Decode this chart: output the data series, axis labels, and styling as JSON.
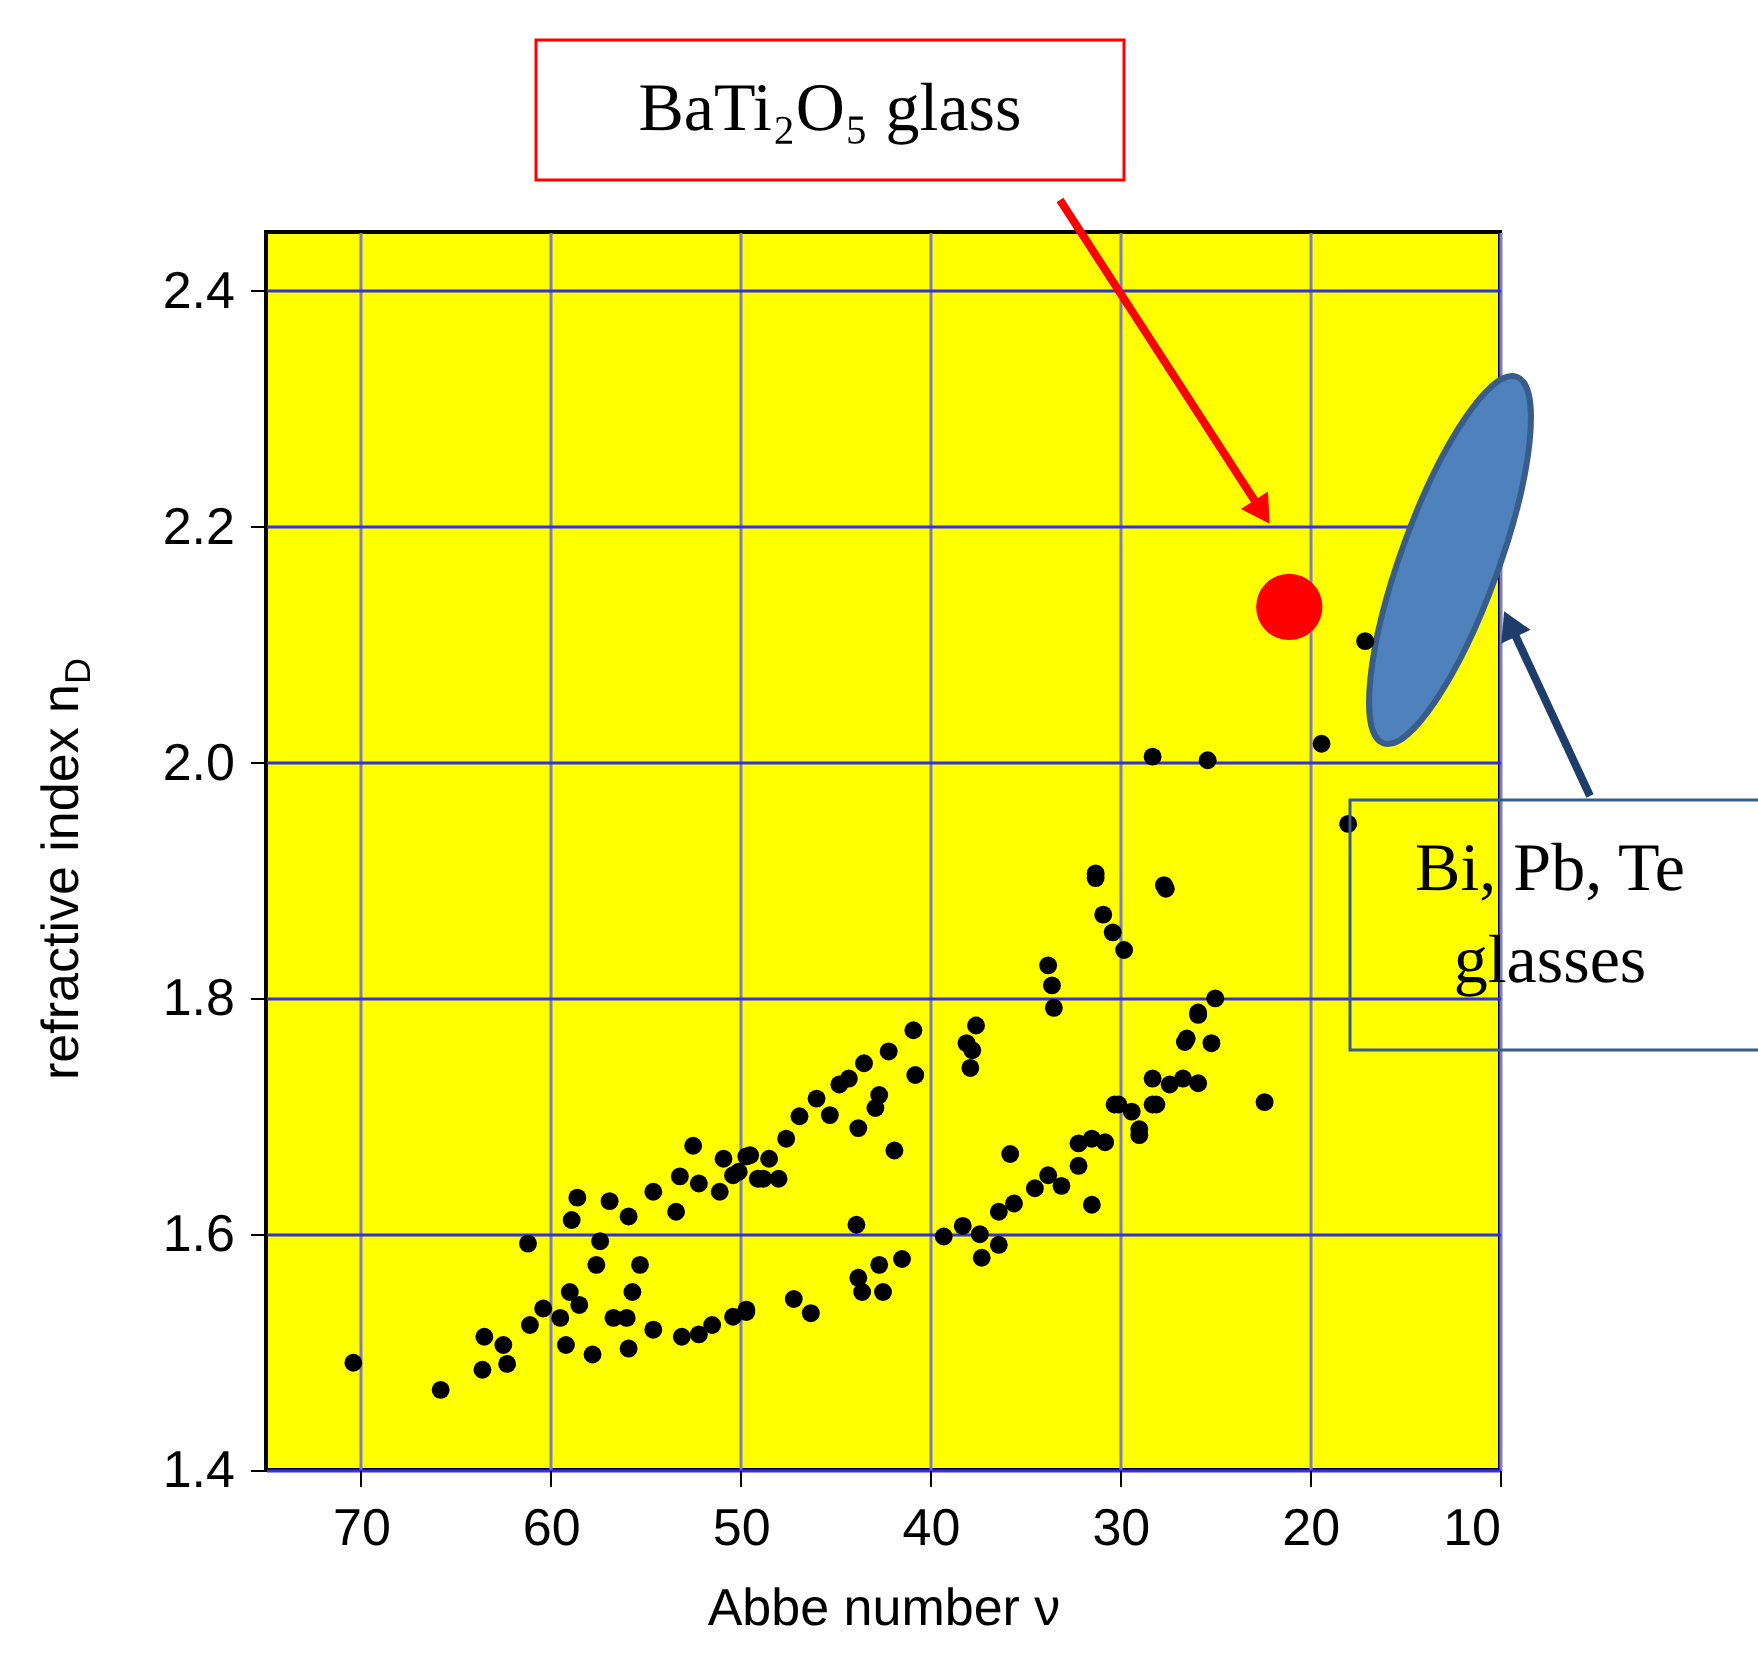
{
  "chart_data": {
    "type": "scatter",
    "xlabel": "Abbe number ν",
    "ylabel": "refractive index n$_{D}$",
    "xlim": [
      75,
      10
    ],
    "xticks": [
      70,
      60,
      50,
      40,
      30,
      20,
      10
    ],
    "ylim": [
      1.4,
      2.45
    ],
    "yticks": [
      {
        "value": 1.4,
        "label": "1.4"
      },
      {
        "value": 1.6,
        "label": "1.6"
      },
      {
        "value": 1.8,
        "label": "1.8"
      },
      {
        "value": 2,
        "label": "2.0"
      },
      {
        "value": 2.2,
        "label": "2.2"
      },
      {
        "value": 2.4,
        "label": "2.4"
      }
    ],
    "grid": true,
    "marker": "circle",
    "annotations": [
      "BaTi₂O₅ glass",
      "Bi, Pb, Te\nglasses"
    ],
    "series": [
      {
        "color": "#000000",
        "x": [
          70.4,
          65.8,
          61.2,
          63.6,
          63.5,
          62.3,
          62.5,
          61.1,
          60.4,
          59.5,
          59.2,
          58.5,
          59.0,
          57.8,
          57.4,
          57.6,
          56.9,
          58.6,
          58.9,
          56.7,
          56.0,
          55.9,
          55.3,
          55.7,
          54.6,
          55.9,
          54.6,
          53.4,
          53.2,
          52.5,
          52.2,
          51.1,
          50.9,
          49.7,
          50.4,
          53.1,
          52.2,
          51.5,
          50.4,
          49.7,
          49.1,
          50.1,
          49.5,
          48.5,
          48.8,
          48.0,
          47.6,
          46.9,
          46.0,
          45.3,
          44.8,
          44.3,
          43.5,
          42.2,
          40.9,
          40.8,
          42.7,
          42.9,
          43.8,
          41.9,
          49.7,
          47.2,
          46.3,
          43.9,
          43.8,
          43.6,
          42.7,
          42.5,
          41.5,
          37.6,
          38.1,
          37.8,
          37.9,
          39.3,
          38.3,
          37.4,
          37.3,
          36.4,
          36.4,
          35.6,
          35.8,
          34.5,
          33.8,
          33.1,
          32.2,
          31.5,
          31.5,
          30.8,
          30.3,
          29.4,
          29.0,
          28.3,
          28.1,
          27.4,
          26.7,
          26.6,
          25.9,
          33.8,
          33.6,
          33.5,
          30.9,
          30.4,
          29.8,
          31.3,
          27.6,
          17.1,
          19.4,
          28.3,
          25.4,
          18.0,
          31.3,
          27.7,
          22.4,
          25.0,
          25.9,
          25.2,
          26.5,
          25.9,
          28.3,
          29.0,
          30.1,
          32.2
        ],
        "values": [
          1.491,
          1.468,
          1.592,
          1.485,
          1.513,
          1.49,
          1.506,
          1.523,
          1.537,
          1.529,
          1.506,
          1.54,
          1.551,
          1.498,
          1.594,
          1.574,
          1.628,
          1.631,
          1.612,
          1.529,
          1.529,
          1.503,
          1.574,
          1.551,
          1.519,
          1.615,
          1.636,
          1.619,
          1.649,
          1.675,
          1.643,
          1.636,
          1.664,
          1.666,
          1.65,
          1.513,
          1.515,
          1.523,
          1.53,
          1.536,
          1.647,
          1.653,
          1.667,
          1.664,
          1.647,
          1.647,
          1.681,
          1.7,
          1.715,
          1.701,
          1.727,
          1.732,
          1.745,
          1.755,
          1.773,
          1.735,
          1.718,
          1.707,
          1.69,
          1.671,
          1.534,
          1.545,
          1.533,
          1.608,
          1.563,
          1.551,
          1.574,
          1.551,
          1.579,
          1.777,
          1.762,
          1.756,
          1.741,
          1.598,
          1.607,
          1.6,
          1.58,
          1.591,
          1.619,
          1.626,
          1.668,
          1.639,
          1.65,
          1.641,
          1.658,
          1.625,
          1.681,
          1.678,
          1.71,
          1.704,
          1.684,
          1.732,
          1.71,
          1.727,
          1.732,
          1.763,
          1.786,
          1.828,
          1.811,
          1.792,
          1.871,
          1.856,
          1.841,
          1.902,
          1.893,
          2.103,
          2.016,
          2.005,
          2.002,
          1.948,
          1.906,
          1.896,
          1.712,
          1.8,
          1.788,
          1.762,
          1.766,
          1.728,
          1.71,
          1.689,
          1.71,
          1.677
        ]
      },
      {
        "color": "#ff0000",
        "x": [
          21.1
        ],
        "values": [
          2.132
        ]
      }
    ]
  }
}
